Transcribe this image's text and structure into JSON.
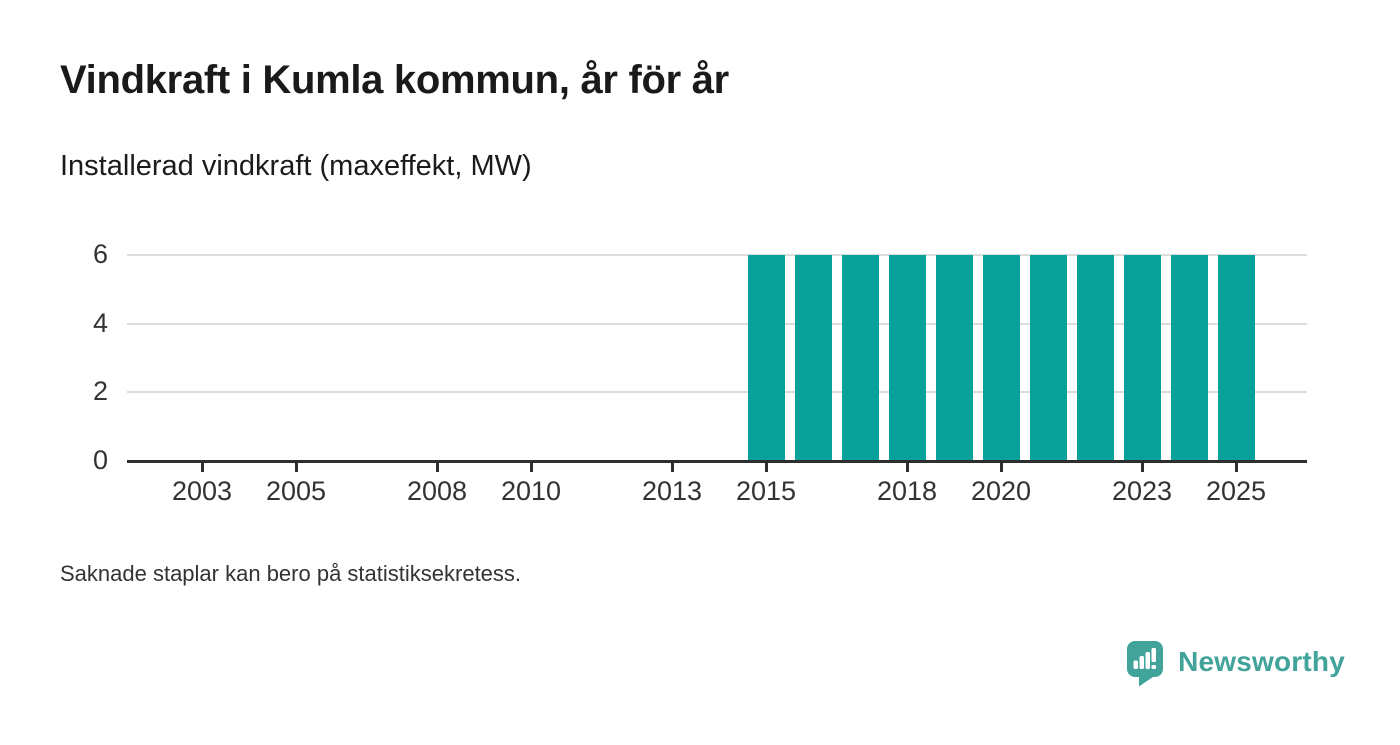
{
  "header": {
    "title": "Vindkraft i Kumla kommun, år för år",
    "subtitle": "Installerad vindkraft (maxeffekt, MW)"
  },
  "chart_data": {
    "type": "bar",
    "title": "Vindkraft i Kumla kommun, år för år",
    "ylabel": "Installerad vindkraft (maxeffekt, MW)",
    "unit": "MW",
    "categories": [
      2015,
      2016,
      2017,
      2018,
      2019,
      2020,
      2021,
      2022,
      2023,
      2024,
      2025
    ],
    "values": [
      6,
      6,
      6,
      6,
      6,
      6,
      6,
      6,
      6,
      6,
      6
    ],
    "missing_years_note": "No bars shown before 2015",
    "x_tick_years": [
      2003,
      2005,
      2008,
      2010,
      2013,
      2015,
      2018,
      2020,
      2023,
      2025
    ],
    "y_ticks": [
      0,
      2,
      4,
      6
    ],
    "xlim": [
      2001.4,
      2026.5
    ],
    "ylim": [
      0,
      6.7
    ],
    "grid": "horizontal",
    "legend": "none",
    "bar_color": "#08a29a",
    "axis_color": "#2e2e2e",
    "grid_color": "#dcdcdc",
    "tick_label_color": "#333333"
  },
  "footer": {
    "note": "Saknade staplar kan bero på statistiksekretess."
  },
  "branding": {
    "name": "Newsworthy",
    "color": "#41a39a",
    "icon": "newsworthy-speech-bubble-bar-chart-icon"
  }
}
